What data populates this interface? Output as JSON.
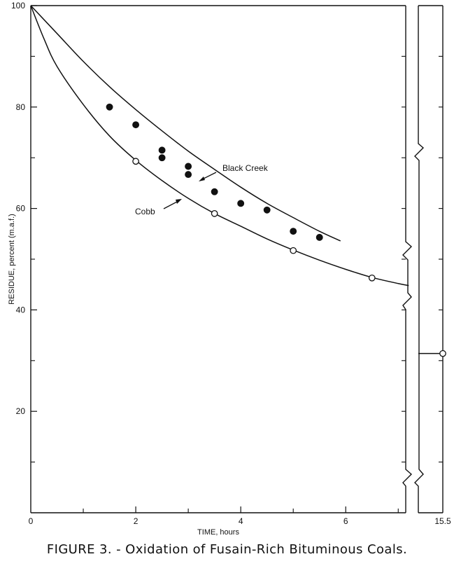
{
  "figure": {
    "caption": "FIGURE 3. - Oxidation of Fusain-Rich Bituminous Coals."
  },
  "chart_data": {
    "type": "line",
    "title": "",
    "xlabel": "TIME, hours",
    "ylabel": "RESIDUE, percent (m.a.f.)",
    "xlim": [
      0,
      7
    ],
    "ylim": [
      0,
      100
    ],
    "grid": false,
    "x_ticks": [
      0,
      2,
      4,
      6
    ],
    "y_ticks": [
      20,
      40,
      60,
      80,
      100
    ],
    "x_tick_labels": [
      "0",
      "2",
      "4",
      "6"
    ],
    "y_tick_labels": [
      "20",
      "40",
      "60",
      "80",
      "100"
    ],
    "axis_break": {
      "x_tick_label": "15.5"
    },
    "series": [
      {
        "name": "Black Creek",
        "marker": "filled-circle",
        "points": [
          {
            "x": 1.5,
            "y": 80
          },
          {
            "x": 2.0,
            "y": 76.5
          },
          {
            "x": 2.5,
            "y": 71.5
          },
          {
            "x": 2.5,
            "y": 70
          },
          {
            "x": 3.0,
            "y": 68.3
          },
          {
            "x": 3.0,
            "y": 66.7
          },
          {
            "x": 3.5,
            "y": 63.3
          },
          {
            "x": 4.0,
            "y": 61
          },
          {
            "x": 4.5,
            "y": 59.7
          },
          {
            "x": 5.0,
            "y": 55.5
          },
          {
            "x": 5.5,
            "y": 54.3
          }
        ],
        "curve": [
          {
            "x": 0,
            "y": 100
          },
          {
            "x": 0.5,
            "y": 94.5
          },
          {
            "x": 1.0,
            "y": 89
          },
          {
            "x": 1.5,
            "y": 84
          },
          {
            "x": 2.0,
            "y": 79.5
          },
          {
            "x": 2.5,
            "y": 75.3
          },
          {
            "x": 3.0,
            "y": 71.3
          },
          {
            "x": 3.5,
            "y": 67.7
          },
          {
            "x": 4.0,
            "y": 64.2
          },
          {
            "x": 4.5,
            "y": 61
          },
          {
            "x": 5.0,
            "y": 58.2
          },
          {
            "x": 5.5,
            "y": 55.5
          },
          {
            "x": 5.9,
            "y": 53.6
          }
        ]
      },
      {
        "name": "Cobb",
        "marker": "open-circle",
        "points": [
          {
            "x": 2.0,
            "y": 69.3
          },
          {
            "x": 3.5,
            "y": 59
          },
          {
            "x": 5.0,
            "y": 51.7
          },
          {
            "x": 6.5,
            "y": 46.3
          },
          {
            "x": 15.5,
            "y": 31.4
          }
        ],
        "curve": [
          {
            "x": 0,
            "y": 100
          },
          {
            "x": 0.25,
            "y": 93.5
          },
          {
            "x": 0.5,
            "y": 88
          },
          {
            "x": 1.0,
            "y": 80.5
          },
          {
            "x": 1.5,
            "y": 74.3
          },
          {
            "x": 2.0,
            "y": 69.5
          },
          {
            "x": 2.5,
            "y": 65.5
          },
          {
            "x": 3.0,
            "y": 62
          },
          {
            "x": 3.5,
            "y": 59
          },
          {
            "x": 4.0,
            "y": 56.5
          },
          {
            "x": 4.5,
            "y": 54
          },
          {
            "x": 5.0,
            "y": 51.8
          },
          {
            "x": 5.5,
            "y": 49.8
          },
          {
            "x": 6.0,
            "y": 48
          },
          {
            "x": 6.5,
            "y": 46.4
          },
          {
            "x": 7.0,
            "y": 45.2
          },
          {
            "x": 7.2,
            "y": 44.8
          }
        ]
      }
    ]
  }
}
